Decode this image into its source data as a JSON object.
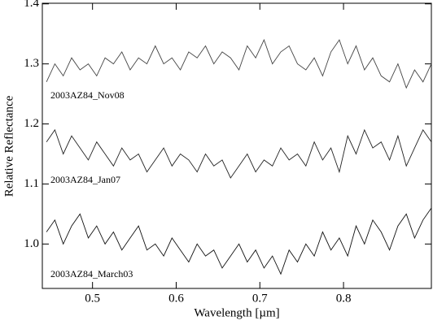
{
  "chart_data": {
    "type": "line",
    "x_label": "Wavelength [µm]",
    "y_label": "Relative Reflectance",
    "x": [
      0.445,
      0.455,
      0.465,
      0.475,
      0.485,
      0.495,
      0.505,
      0.515,
      0.525,
      0.535,
      0.545,
      0.555,
      0.565,
      0.575,
      0.585,
      0.595,
      0.605,
      0.615,
      0.625,
      0.635,
      0.645,
      0.655,
      0.665,
      0.675,
      0.685,
      0.695,
      0.705,
      0.715,
      0.725,
      0.735,
      0.745,
      0.755,
      0.765,
      0.775,
      0.785,
      0.795,
      0.805,
      0.815,
      0.825,
      0.835,
      0.845,
      0.855,
      0.865,
      0.875,
      0.885,
      0.895,
      0.905
    ],
    "series": [
      {
        "name": "2003AZ84_Nov08",
        "color": "#444444",
        "values": [
          1.27,
          1.3,
          1.28,
          1.31,
          1.29,
          1.3,
          1.28,
          1.31,
          1.3,
          1.32,
          1.29,
          1.31,
          1.3,
          1.33,
          1.3,
          1.31,
          1.29,
          1.32,
          1.31,
          1.33,
          1.3,
          1.32,
          1.31,
          1.29,
          1.33,
          1.31,
          1.34,
          1.3,
          1.32,
          1.33,
          1.3,
          1.29,
          1.31,
          1.28,
          1.32,
          1.34,
          1.3,
          1.33,
          1.29,
          1.31,
          1.28,
          1.27,
          1.3,
          1.26,
          1.29,
          1.27,
          1.3
        ]
      },
      {
        "name": "2003AZ84_Jan07",
        "color": "#222222",
        "values": [
          1.17,
          1.19,
          1.15,
          1.18,
          1.16,
          1.14,
          1.17,
          1.15,
          1.13,
          1.16,
          1.14,
          1.15,
          1.12,
          1.14,
          1.16,
          1.13,
          1.15,
          1.14,
          1.12,
          1.15,
          1.13,
          1.14,
          1.11,
          1.13,
          1.15,
          1.12,
          1.14,
          1.13,
          1.16,
          1.14,
          1.15,
          1.13,
          1.17,
          1.14,
          1.16,
          1.12,
          1.18,
          1.15,
          1.19,
          1.16,
          1.17,
          1.14,
          1.18,
          1.13,
          1.16,
          1.19,
          1.17
        ]
      },
      {
        "name": "2003AZ84_March03",
        "color": "#111111",
        "values": [
          1.02,
          1.04,
          1.0,
          1.03,
          1.05,
          1.01,
          1.03,
          1.0,
          1.02,
          0.99,
          1.01,
          1.03,
          0.99,
          1.0,
          0.98,
          1.01,
          0.99,
          0.97,
          1.0,
          0.98,
          0.99,
          0.96,
          0.98,
          1.0,
          0.97,
          0.99,
          0.96,
          0.98,
          0.95,
          0.99,
          0.97,
          1.0,
          0.98,
          1.02,
          0.99,
          1.01,
          0.98,
          1.03,
          1.0,
          1.04,
          1.02,
          0.99,
          1.03,
          1.05,
          1.01,
          1.04,
          1.06
        ]
      }
    ],
    "xlim": [
      0.44,
      0.905
    ],
    "ylim": [
      0.926,
      1.401
    ],
    "xticks": [
      0.5,
      0.6,
      0.7,
      0.8
    ],
    "yticks": [
      {
        "value": 1,
        "label": "1.0"
      },
      1.1,
      1.2,
      1.3,
      1.4
    ],
    "legend": "inline"
  }
}
